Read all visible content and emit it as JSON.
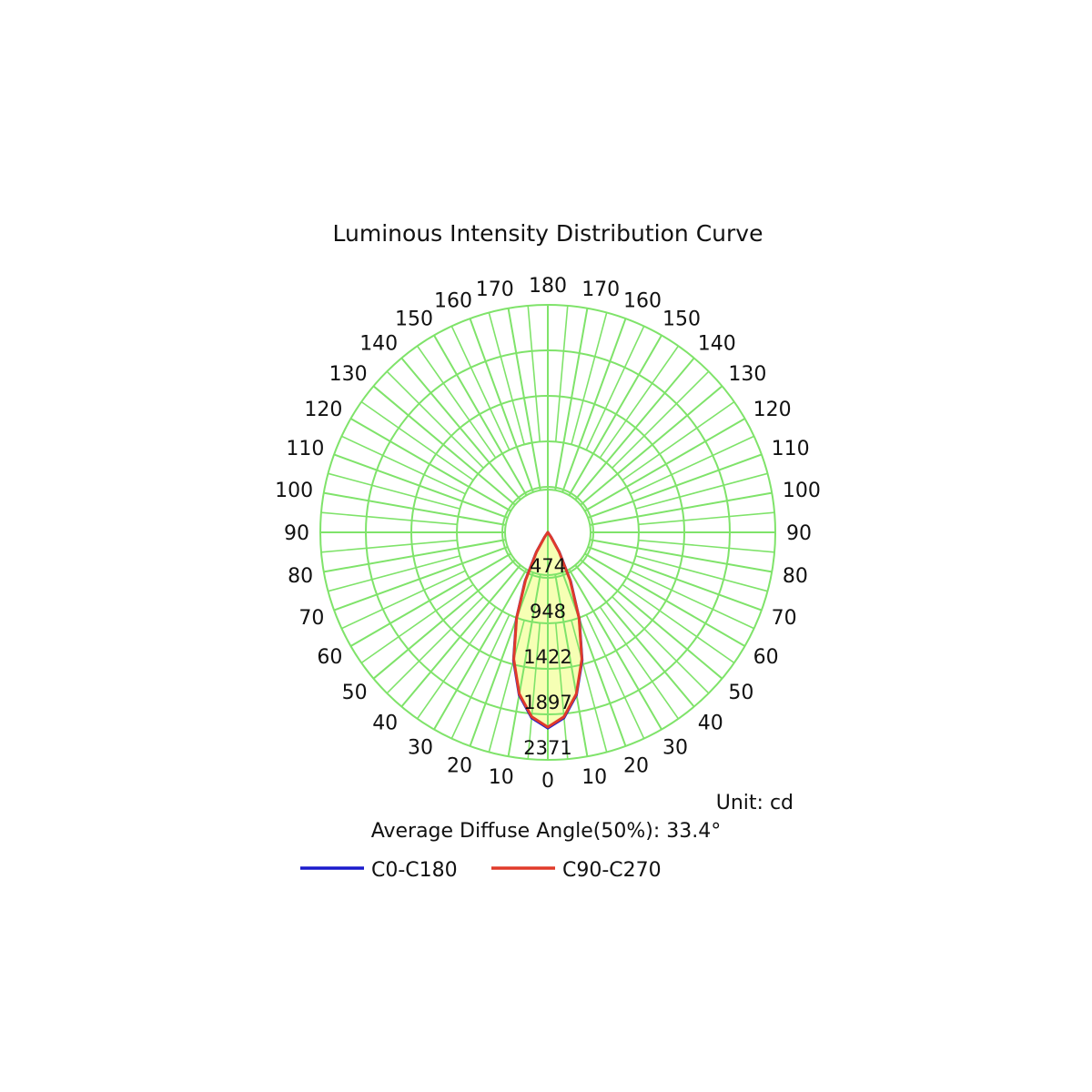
{
  "chart_data": {
    "type": "polar",
    "title": "Luminous Intensity Distribution Curve",
    "unit_label": "Unit: cd",
    "footer": "Average Diffuse Angle(50%): 33.4°",
    "angles": [
      0,
      10,
      20,
      30,
      40,
      50,
      60,
      70,
      80,
      90,
      100,
      110,
      120,
      130,
      140,
      150,
      160,
      170,
      180
    ],
    "angle_labels": [
      "0",
      "10",
      "20",
      "30",
      "40",
      "50",
      "60",
      "70",
      "80",
      "90",
      "100",
      "110",
      "120",
      "130",
      "140",
      "150",
      "160",
      "170",
      "180"
    ],
    "radial_max": 2371,
    "radial_ticks": [
      474,
      948,
      1422,
      1897,
      2371
    ],
    "radial_tick_labels": [
      "474",
      "948",
      "1422",
      "1897",
      "2371"
    ],
    "grid": true,
    "colors": {
      "grid": "#7fe36a",
      "fill": "#f6ffb0",
      "c0": "#1a1acc",
      "c90": "#e03a2a"
    },
    "legend_position": "bottom",
    "series": [
      {
        "name": "C0-C180",
        "color": "#1a1acc",
        "angles": [
          0,
          5,
          10,
          15,
          20,
          25,
          30,
          35,
          40,
          180
        ],
        "values": [
          2040,
          1940,
          1720,
          1380,
          960,
          560,
          240,
          60,
          0,
          0
        ]
      },
      {
        "name": "C90-C270",
        "color": "#e03a2a",
        "angles": [
          0,
          5,
          10,
          15,
          20,
          25,
          30,
          35,
          40,
          180
        ],
        "values": [
          2030,
          1930,
          1710,
          1370,
          950,
          550,
          235,
          55,
          0,
          0
        ]
      }
    ]
  }
}
